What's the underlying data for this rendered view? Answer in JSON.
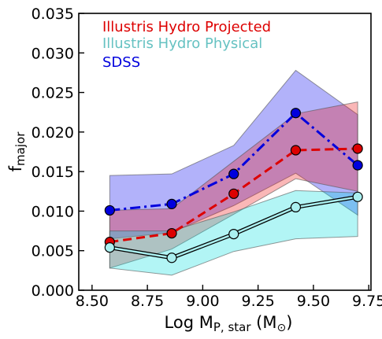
{
  "chart_data": {
    "type": "line",
    "xlabel": {
      "main": "Log M",
      "sub": "P, star",
      "unit_open": " (M",
      "unit_sym": "⊙",
      "unit_close": ")"
    },
    "ylabel": {
      "main": "f",
      "sub": "major"
    },
    "xlim": [
      8.44,
      9.76
    ],
    "ylim": [
      0.0,
      0.035
    ],
    "xticks": [
      8.5,
      8.75,
      9.0,
      9.25,
      9.5,
      9.75
    ],
    "xtick_labels": [
      "8.50",
      "8.75",
      "9.00",
      "9.25",
      "9.50",
      "9.75"
    ],
    "yticks": [
      0.0,
      0.005,
      0.01,
      0.015,
      0.02,
      0.025,
      0.03,
      0.035
    ],
    "ytick_labels": [
      "0.000",
      "0.005",
      "0.010",
      "0.015",
      "0.020",
      "0.025",
      "0.030",
      "0.035"
    ],
    "grid": false,
    "legend_position": "top-left",
    "x": [
      8.58,
      8.86,
      9.14,
      9.42,
      9.7
    ],
    "series": [
      {
        "name": "SDSS",
        "color": "#0000dd",
        "fill": "#0000ee",
        "linestyle": "dashdot",
        "values": [
          0.0101,
          0.0109,
          0.0147,
          0.0224,
          0.0158
        ],
        "lower": [
          0.0065,
          0.0073,
          0.0107,
          0.0148,
          0.0095
        ],
        "upper": [
          0.0145,
          0.0147,
          0.0183,
          0.0278,
          0.0222
        ]
      },
      {
        "name": "Illustris Hydro Projected",
        "color": "#dd0000",
        "fill": "#ee1111",
        "linestyle": "dashed",
        "values": [
          0.0061,
          0.0072,
          0.0122,
          0.0177,
          0.0179
        ],
        "lower": [
          0.0028,
          0.0052,
          0.0096,
          0.0141,
          0.0125
        ],
        "upper": [
          0.0101,
          0.0103,
          0.0163,
          0.0223,
          0.0238
        ]
      },
      {
        "name": "Illustris Hydro Physical",
        "color": "#000000",
        "marker_face": "#aaf0f0",
        "fill": "#00dddd",
        "linestyle": "solid",
        "values": [
          0.0054,
          0.0041,
          0.0071,
          0.0105,
          0.0118
        ],
        "lower": [
          0.0028,
          0.0019,
          0.0049,
          0.0065,
          0.0068
        ],
        "upper": [
          0.0075,
          0.0075,
          0.0099,
          0.0126,
          0.0123
        ]
      }
    ],
    "legend": [
      {
        "label": "Illustris Hydro Projected",
        "color": "#dd0000"
      },
      {
        "label": "Illustris Hydro Physical",
        "color": "#66c2c2"
      },
      {
        "label": "SDSS",
        "color": "#0000dd"
      }
    ]
  }
}
